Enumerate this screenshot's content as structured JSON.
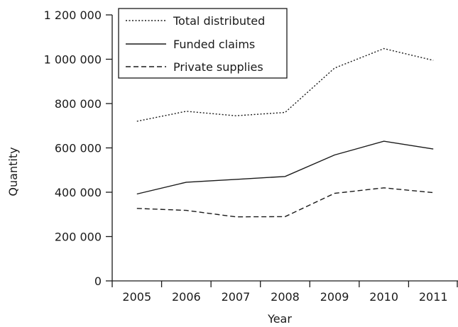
{
  "chart_data": {
    "type": "line",
    "categories": [
      "2005",
      "2006",
      "2007",
      "2008",
      "2009",
      "2010",
      "2011"
    ],
    "series": [
      {
        "name": "Total distributed",
        "style": "dotted",
        "values": [
          720000,
          765000,
          745000,
          760000,
          960000,
          1048000,
          995000
        ]
      },
      {
        "name": "Funded claims",
        "style": "solid",
        "values": [
          392000,
          445000,
          458000,
          471000,
          568000,
          630000,
          595000
        ]
      },
      {
        "name": "Private supplies",
        "style": "dashed",
        "values": [
          327000,
          318000,
          289000,
          290000,
          395000,
          420000,
          398000
        ]
      }
    ],
    "y_ticks": [
      {
        "value": 0,
        "label": "0"
      },
      {
        "value": 200000,
        "label": "200 000"
      },
      {
        "value": 400000,
        "label": "400 000"
      },
      {
        "value": 600000,
        "label": "600 000"
      },
      {
        "value": 800000,
        "label": "800 000"
      },
      {
        "value": 1000000,
        "label": "1 000 000"
      },
      {
        "value": 1200000,
        "label": "1 200 000"
      }
    ],
    "xlabel": "Year",
    "ylabel": "Quantity",
    "ylim": [
      0,
      1200000
    ],
    "grid": false,
    "legend_position": "top-left",
    "line_color": "#1a1a1a"
  }
}
